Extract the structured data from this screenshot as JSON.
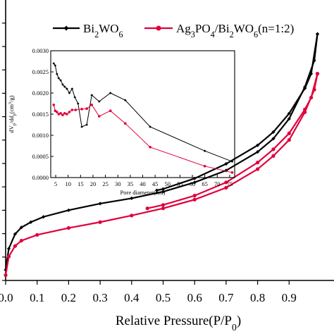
{
  "chart_data": [
    {
      "type": "line",
      "role": "main",
      "title": "",
      "xlabel": "Relative Pressure(P/P0)",
      "xlabel_parts": {
        "main": "Relative Pressure(P/P",
        "sub": "0",
        "close": ")"
      },
      "ylabel": "",
      "xlim": [
        0.0,
        1.0
      ],
      "x_ticks": [
        "0.0",
        "0.1",
        "0.2",
        "0.3",
        "0.4",
        "0.5",
        "0.6",
        "0.7",
        "0.8",
        "0.9"
      ],
      "y_tick_count": 12,
      "grid": false,
      "colors": {
        "Bi2WO6": "#000000",
        "Ag3PO4/Bi2WO6": "#e0003a"
      },
      "series": [
        {
          "key": "Bi2WO6",
          "marker": "diamond",
          "adsorption": [
            [
              0.0,
              0.4
            ],
            [
              0.01,
              1.2
            ],
            [
              0.03,
              1.75
            ],
            [
              0.05,
              2.0
            ],
            [
              0.08,
              2.2
            ],
            [
              0.12,
              2.4
            ],
            [
              0.2,
              2.65
            ],
            [
              0.3,
              2.9
            ],
            [
              0.4,
              3.1
            ],
            [
              0.5,
              3.35
            ],
            [
              0.6,
              3.7
            ],
            [
              0.7,
              4.15
            ],
            [
              0.8,
              4.85
            ],
            [
              0.85,
              5.35
            ],
            [
              0.9,
              6.1
            ],
            [
              0.95,
              7.3
            ],
            [
              0.98,
              8.3
            ],
            [
              0.99,
              9.3
            ]
          ],
          "desorption": [
            [
              0.99,
              9.3
            ],
            [
              0.97,
              7.8
            ],
            [
              0.95,
              7.25
            ],
            [
              0.9,
              6.3
            ],
            [
              0.85,
              5.6
            ],
            [
              0.8,
              5.1
            ],
            [
              0.7,
              4.4
            ],
            [
              0.6,
              3.85
            ],
            [
              0.5,
              3.45
            ],
            [
              0.48,
              3.4
            ]
          ]
        },
        {
          "key": "Ag3PO4/Bi2WO6",
          "marker": "circle",
          "adsorption": [
            [
              0.0,
              0.2
            ],
            [
              0.01,
              0.9
            ],
            [
              0.03,
              1.3
            ],
            [
              0.05,
              1.5
            ],
            [
              0.1,
              1.72
            ],
            [
              0.2,
              1.98
            ],
            [
              0.3,
              2.2
            ],
            [
              0.4,
              2.45
            ],
            [
              0.5,
              2.72
            ],
            [
              0.6,
              3.05
            ],
            [
              0.7,
              3.5
            ],
            [
              0.8,
              4.2
            ],
            [
              0.85,
              4.7
            ],
            [
              0.9,
              5.3
            ],
            [
              0.95,
              6.35
            ],
            [
              0.98,
              7.2
            ],
            [
              0.99,
              7.8
            ]
          ],
          "desorption": [
            [
              0.99,
              7.8
            ],
            [
              0.97,
              6.9
            ],
            [
              0.95,
              6.45
            ],
            [
              0.9,
              5.55
            ],
            [
              0.85,
              4.95
            ],
            [
              0.8,
              4.45
            ],
            [
              0.7,
              3.7
            ],
            [
              0.6,
              3.2
            ],
            [
              0.5,
              2.85
            ],
            [
              0.45,
              2.72
            ]
          ]
        }
      ],
      "legend": {
        "placement": "top",
        "entries": [
          {
            "key": "Bi2WO6",
            "parts": [
              [
                "Bi",
                ""
              ],
              [
                "2",
                "sub"
              ],
              [
                "WO",
                ""
              ],
              [
                "6",
                "sub"
              ]
            ]
          },
          {
            "key": "Ag3PO4/Bi2WO6",
            "parts": [
              [
                "Ag",
                ""
              ],
              [
                "3",
                "sub"
              ],
              [
                "PO",
                ""
              ],
              [
                "4",
                "sub"
              ],
              [
                "/Bi",
                ""
              ],
              [
                "2",
                "sub"
              ],
              [
                "WO",
                ""
              ],
              [
                "6",
                "sub"
              ],
              [
                "(n=1:2)",
                ""
              ]
            ]
          }
        ]
      }
    },
    {
      "type": "line",
      "role": "inset",
      "title": "",
      "xlabel": "Pore diameter(nm)",
      "ylabel": "dV/dd (cm3/g)",
      "ylabel_parts": [
        [
          "dV",
          ""
        ],
        [
          "p",
          "sub"
        ],
        [
          "/dd",
          ""
        ],
        [
          "p",
          "sub"
        ],
        [
          "(cm",
          ""
        ],
        [
          "3",
          "sup"
        ],
        [
          "/g)",
          ""
        ]
      ],
      "xlim": [
        3,
        77
      ],
      "ylim": [
        0.0,
        0.003
      ],
      "x_ticks": [
        "5",
        "10",
        "15",
        "20",
        "25",
        "30",
        "35",
        "40",
        "45",
        "50",
        "55",
        "60",
        "65",
        "70",
        "75"
      ],
      "y_ticks": [
        "0.0000",
        "0.0005",
        "0.0010",
        "0.0015",
        "0.0020",
        "0.0025",
        "0.0030"
      ],
      "grid": false,
      "series": [
        {
          "key": "Bi2WO6",
          "marker": "diamond",
          "points": [
            [
              4.2,
              0.0027
            ],
            [
              4.8,
              0.00265
            ],
            [
              5.5,
              0.00245
            ],
            [
              6.2,
              0.00235
            ],
            [
              7.0,
              0.0023
            ],
            [
              7.8,
              0.0022
            ],
            [
              8.6,
              0.00215
            ],
            [
              9.5,
              0.0021
            ],
            [
              10.5,
              0.002
            ],
            [
              11.6,
              0.0021
            ],
            [
              12.7,
              0.0019
            ],
            [
              14.0,
              0.00175
            ],
            [
              15.5,
              0.0012
            ],
            [
              17.5,
              0.00125
            ],
            [
              19.5,
              0.00195
            ],
            [
              22.5,
              0.0018
            ],
            [
              27.0,
              0.002
            ],
            [
              33.0,
              0.00183
            ],
            [
              43.0,
              0.0012
            ],
            [
              65.0,
              0.00063
            ],
            [
              76.0,
              0.00038
            ]
          ]
        },
        {
          "key": "Ag3PO4/Bi2WO6",
          "marker": "circle",
          "points": [
            [
              4.2,
              0.00172
            ],
            [
              4.8,
              0.00158
            ],
            [
              5.5,
              0.00155
            ],
            [
              6.2,
              0.0015
            ],
            [
              7.0,
              0.00152
            ],
            [
              7.8,
              0.00148
            ],
            [
              8.6,
              0.00152
            ],
            [
              9.5,
              0.0015
            ],
            [
              10.5,
              0.00155
            ],
            [
              11.6,
              0.0016
            ],
            [
              13.0,
              0.0016
            ],
            [
              15.5,
              0.00162
            ],
            [
              17.5,
              0.00163
            ],
            [
              19.5,
              0.00172
            ],
            [
              22.5,
              0.00145
            ],
            [
              27.0,
              0.00158
            ],
            [
              33.0,
              0.00128
            ],
            [
              43.0,
              0.00072
            ],
            [
              65.0,
              0.00027
            ],
            [
              76.0,
              0.00012
            ]
          ]
        }
      ]
    }
  ]
}
